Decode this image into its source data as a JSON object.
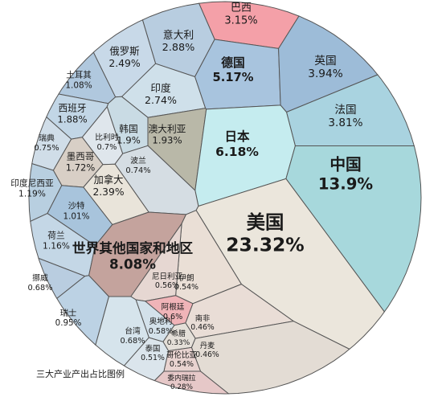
{
  "chart_data": {
    "type": "voronoi",
    "legend_title": "三大产业产出占比图例",
    "categories": [
      "巴西",
      "意大利",
      "俄罗斯",
      "德国",
      "英国",
      "土耳其",
      "印度",
      "法国",
      "西班牙",
      "瑞典",
      "比利时",
      "韩国",
      "澳大利亚",
      "日本",
      "中国",
      "墨西哥",
      "波兰",
      "加拿大",
      "印度尼西亚",
      "沙特",
      "美国",
      "荷兰",
      "世界其他国家和地区",
      "挪威",
      "伊朗",
      "尼日利亚",
      "阿根廷",
      "瑞士",
      "奥地利",
      "南非",
      "台湾",
      "希腊",
      "泰国",
      "丹麦",
      "哥伦比亚",
      "委内瑞拉"
    ],
    "values": [
      3.15,
      2.88,
      2.49,
      5.17,
      3.94,
      1.08,
      2.74,
      3.81,
      1.88,
      0.75,
      0.7,
      1.9,
      1.93,
      6.18,
      13.9,
      1.72,
      0.74,
      2.39,
      1.19,
      1.01,
      23.32,
      1.16,
      8.08,
      0.68,
      0.54,
      0.56,
      0.6,
      0.95,
      0.58,
      0.46,
      0.68,
      0.33,
      0.51,
      0.46,
      0.54,
      0.28
    ],
    "value_labels": [
      "3.15%",
      "2.88%",
      "2.49%",
      "5.17%",
      "3.94%",
      "1.08%",
      "2.74%",
      "3.81%",
      "1.88%",
      "0.75%",
      "0.7%",
      "1.9%",
      "1.93%",
      "6.18%",
      "13.9%",
      "1.72%",
      "0.74%",
      "2.39%",
      "1.19%",
      "1.01%",
      "23.32%",
      "1.16%",
      "8.08%",
      "0.68%",
      "0.54%",
      "0.56%",
      "0.6%",
      "0.95%",
      "0.58%",
      "0.46%",
      "0.68%",
      "0.33%",
      "0.51%",
      "0.46%",
      "0.54%",
      "0.28%"
    ],
    "colors": [
      "#f4a0a8",
      "#b8cde0",
      "#c8d9e8",
      "#a8c4de",
      "#9dbcd8",
      "#b0c8de",
      "#cfe0ea",
      "#a9d3e0",
      "#c2d6e6",
      "#d0dde8",
      "#dfe6ec",
      "#c9dbe4",
      "#b9b8a8",
      "#c5ecef",
      "#a7d8dc",
      "#d8cfc6",
      "#d5dde3",
      "#e9e4da",
      "#b8cfe0",
      "#a8c4dc",
      "#ebe6dc",
      "#c4d7e6",
      "#c4a39d",
      "#b9cde0",
      "#eadfd6",
      "#e6d7d2",
      "#f0b4b8",
      "#bcd2e4",
      "#d3e1ea",
      "#e9ddd6",
      "#d6e4ec",
      "#e4dfd8",
      "#dbe5ec",
      "#e3dcd4",
      "#e8d3d0",
      "#e6c8c8"
    ]
  }
}
